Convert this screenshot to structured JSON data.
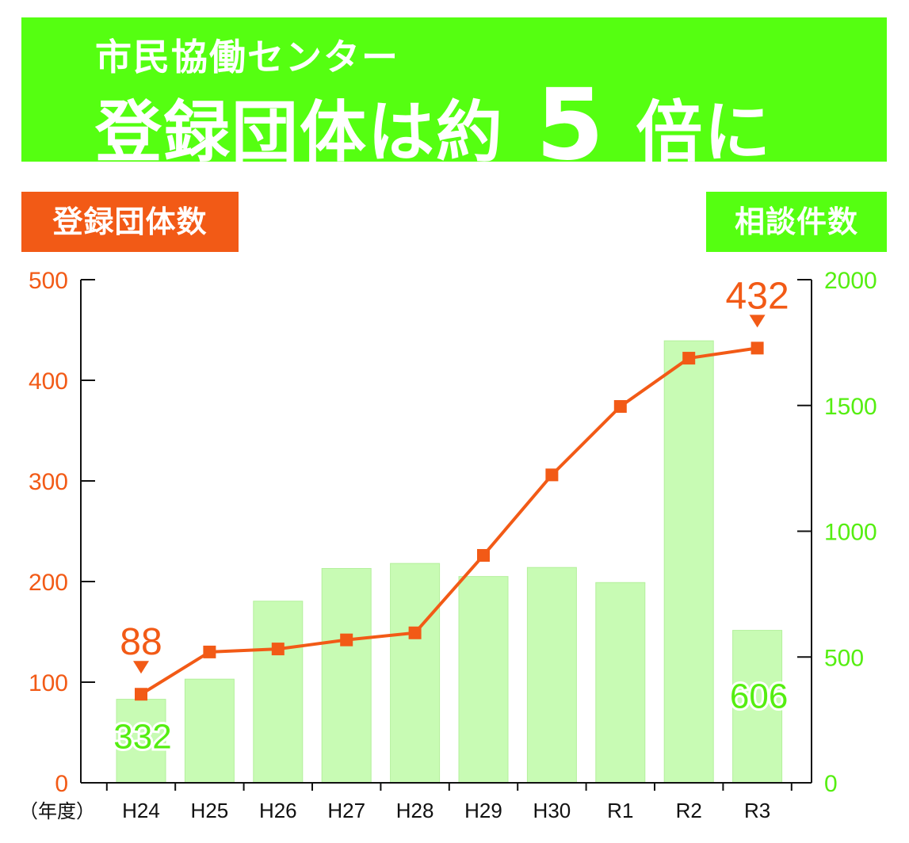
{
  "banner": {
    "subtitle": "市民協働センター",
    "headline_prefix": "登録団体は約",
    "headline_number": "5",
    "headline_suffix": "倍に"
  },
  "axis_badges": {
    "left": "登録団体数",
    "right": "相談件数"
  },
  "colors": {
    "banner_green": "#55ff11",
    "line_orange": "#f25a16",
    "bar_green": "#c8fbb4",
    "bar_stroke": "#b4f09c",
    "right_axis_green": "#55ee11"
  },
  "chart_data": {
    "type": "bar+line",
    "x_axis_unit_label": "（年度）",
    "categories": [
      "H24",
      "H25",
      "H26",
      "H27",
      "H28",
      "H29",
      "H30",
      "R1",
      "R2",
      "R3"
    ],
    "series": [
      {
        "name": "登録団体数",
        "type": "line",
        "axis": "left",
        "values": [
          88,
          130,
          133,
          142,
          149,
          226,
          306,
          374,
          422,
          432
        ]
      },
      {
        "name": "相談件数",
        "type": "bar",
        "axis": "right",
        "values": [
          332,
          412,
          722,
          852,
          872,
          820,
          856,
          796,
          1757,
          606
        ]
      }
    ],
    "left_axis": {
      "ylim": [
        0,
        500
      ],
      "ticks": [
        "0",
        "100",
        "200",
        "300",
        "400",
        "500"
      ]
    },
    "right_axis": {
      "ylim": [
        0,
        2000
      ],
      "ticks": [
        "0",
        "500",
        "1000",
        "1500",
        "2000"
      ]
    },
    "annotations": [
      {
        "series": "登録団体数",
        "category": "H24",
        "label": "88"
      },
      {
        "series": "登録団体数",
        "category": "R3",
        "label": "432"
      },
      {
        "series": "相談件数",
        "category": "H24",
        "label": "332"
      },
      {
        "series": "相談件数",
        "category": "R3",
        "label": "606"
      }
    ]
  }
}
